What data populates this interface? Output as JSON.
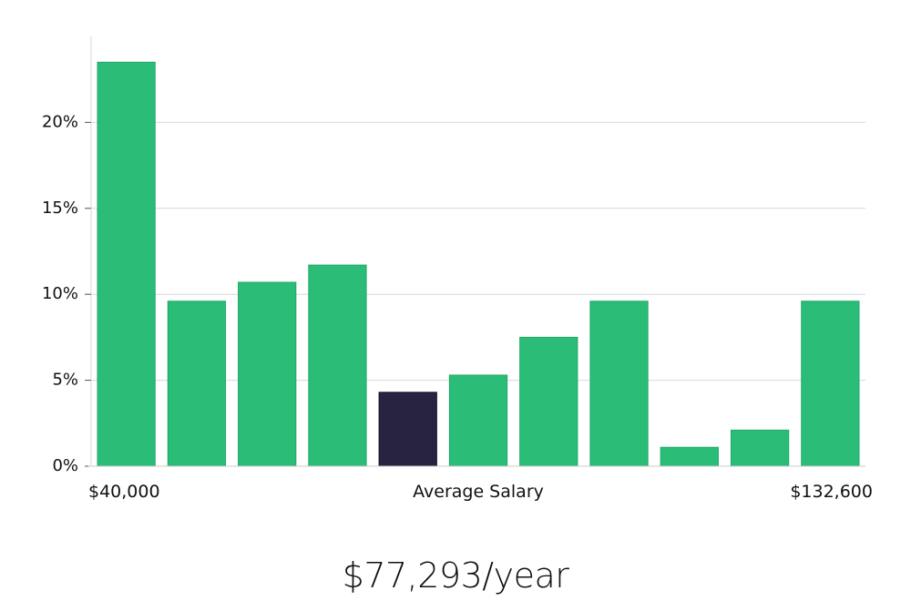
{
  "chart_data": {
    "type": "bar",
    "title": "",
    "xlabel": "Average Salary",
    "ylabel": "",
    "x_min_label": "$40,000",
    "x_max_label": "$132,600",
    "ylim": [
      0,
      25
    ],
    "yticks": [
      0,
      5,
      10,
      15,
      20
    ],
    "ytick_labels": [
      "0%",
      "5%",
      "10%",
      "15%",
      "20%"
    ],
    "grid": true,
    "values": [
      23.5,
      9.6,
      10.7,
      11.7,
      4.3,
      5.3,
      7.5,
      9.6,
      1.1,
      2.1,
      9.6
    ],
    "highlight_index": 4,
    "colors": {
      "bar": "#2bbd77",
      "highlight": "#28243f",
      "grid": "#d9d9d9"
    }
  },
  "salary_text": "$77,293/year"
}
